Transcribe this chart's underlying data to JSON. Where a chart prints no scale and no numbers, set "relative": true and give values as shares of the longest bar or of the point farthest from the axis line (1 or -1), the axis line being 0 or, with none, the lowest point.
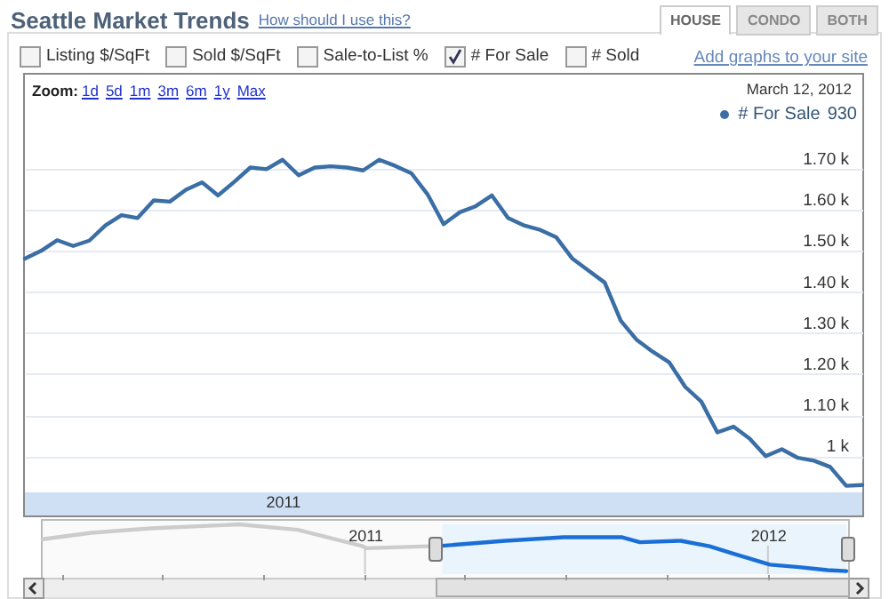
{
  "chart_data": [
    {
      "type": "line",
      "title": "Seattle Market Trends",
      "annotations": [
        "How should I use this?",
        "HOUSE",
        "CONDO",
        "BOTH",
        "Listing $/SqFt",
        "Sold $/SqFt",
        "Sale-to-List %",
        "# For Sale",
        "# Sold",
        "Add graphs to your site",
        "Zoom:",
        "1d",
        "5d",
        "1m",
        "3m",
        "6m",
        "1y",
        "Max",
        "March 12, 2012",
        "930"
      ],
      "categories": [
        null,
        null,
        null,
        null,
        null,
        null,
        null,
        null,
        null,
        null,
        null,
        null,
        null,
        null,
        null,
        null,
        "2011",
        null,
        null,
        null,
        null,
        null,
        null,
        null,
        null,
        null,
        null,
        null,
        null,
        null,
        null,
        null,
        null,
        null,
        null,
        null,
        null,
        null,
        null,
        null,
        null,
        null,
        null,
        null,
        null,
        null,
        null,
        null,
        null,
        null,
        null,
        null,
        null
      ],
      "series": [
        {
          "name": "# For Sale",
          "color": "#3a6ea5",
          "values": [
            1481,
            1500,
            1526,
            1512,
            1525,
            1562,
            1587,
            1580,
            1623,
            1620,
            1649,
            1667,
            1635,
            1668,
            1703,
            1699,
            1722,
            1684,
            1703,
            1706,
            1703,
            1696,
            1722,
            1707,
            1689,
            1638,
            1565,
            1594,
            1609,
            1635,
            1580,
            1562,
            1551,
            1533,
            1481,
            1452,
            1423,
            1330,
            1283,
            1254,
            1229,
            1169,
            1133,
            1058,
            1072,
            1043,
            1000,
            1017,
            996,
            989,
            974,
            928,
            930
          ]
        }
      ],
      "ylim": [
        912,
        1795
      ],
      "yticks": [
        {
          "value": 1000,
          "label": "1 k"
        },
        {
          "value": 1100,
          "label": "1.10 k"
        },
        {
          "value": 1200,
          "label": "1.20 k"
        },
        {
          "value": 1300,
          "label": "1.30 k"
        },
        {
          "value": 1400,
          "label": "1.40 k"
        },
        {
          "value": 1500,
          "label": "1.50 k"
        },
        {
          "value": 1600,
          "label": "1.60 k"
        },
        {
          "value": 1700,
          "label": "1.70 k"
        }
      ],
      "grid": "y",
      "legend": "top right"
    },
    {
      "type": "line",
      "relative": true,
      "series": [
        {
          "color": "#cccccc",
          "x": [
            "2010-03-15",
            "2010-04-28",
            "2010-06-21",
            "2010-09-09",
            "2010-11-01",
            "2010-12-30",
            "2011-01-02",
            "2011-03-12"
          ],
          "values": [
            0.7,
            0.83,
            0.92,
            1,
            0.89,
            0.56,
            0.52,
            0.57
          ]
        },
        {
          "color": "#1a6fd6",
          "x": [
            "2011-03-12",
            "2011-05-08",
            "2011-06-30",
            "2011-08-22",
            "2011-09-07",
            "2011-10-14",
            "2011-11-09",
            "2011-12-01",
            "2012-01-03",
            "2012-01-29",
            "2012-02-24",
            "2012-03-12"
          ],
          "values": [
            0.57,
            0.67,
            0.74,
            0.74,
            0.64,
            0.67,
            0.56,
            0.41,
            0.19,
            0.14,
            0.08,
            0.06
          ]
        }
      ],
      "xlim": [
        "2010-03-15",
        "2012-03-12"
      ],
      "xticks": [
        {
          "value": "2010-04-01",
          "label": null
        },
        {
          "value": "2010-07-01",
          "label": null
        },
        {
          "value": "2010-10-01",
          "label": null
        },
        {
          "value": "2011-01-01",
          "label": "2011"
        },
        {
          "value": "2011-04-01",
          "label": null
        },
        {
          "value": "2011-07-01",
          "label": null
        },
        {
          "value": "2011-10-01",
          "label": null
        },
        {
          "value": "2012-01-01",
          "label": "2012"
        }
      ],
      "bands": [
        {
          "axis": "x",
          "from": "2011-03-12",
          "to": "2012-03-12",
          "color": "#eaf4fd"
        }
      ],
      "ref_lines": [
        {
          "axis": "x",
          "value": "2011-01-01",
          "color": "#cccccc"
        },
        {
          "axis": "x",
          "value": "2012-01-01",
          "color": "#cccccc"
        }
      ]
    }
  ]
}
